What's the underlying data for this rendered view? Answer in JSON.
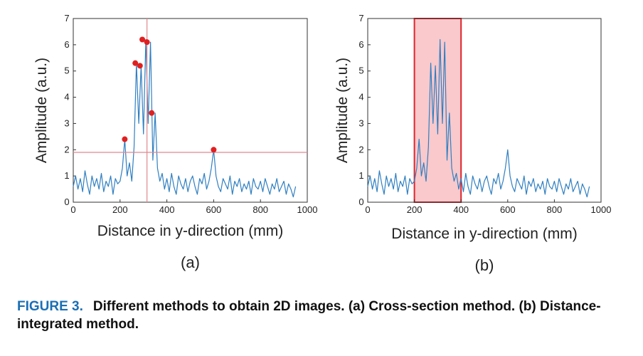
{
  "chart_data": [
    {
      "type": "line",
      "panel": "(a)",
      "xlabel": "Distance in y-direction (mm)",
      "ylabel": "Amplitude (a.u.)",
      "xlim": [
        0,
        1000
      ],
      "ylim": [
        0,
        7
      ],
      "xticks": [
        "0",
        "200",
        "400",
        "600",
        "800",
        "1000"
      ],
      "yticks": [
        "0",
        "1",
        "2",
        "3",
        "4",
        "5",
        "6",
        "7"
      ],
      "series": [
        {
          "name": "amplitude",
          "x": [
            0,
            10,
            20,
            30,
            40,
            50,
            60,
            70,
            80,
            90,
            100,
            110,
            120,
            130,
            140,
            150,
            160,
            170,
            180,
            190,
            200,
            210,
            220,
            230,
            240,
            250,
            260,
            270,
            280,
            290,
            300,
            310,
            320,
            330,
            340,
            350,
            360,
            370,
            380,
            390,
            400,
            410,
            420,
            430,
            440,
            450,
            460,
            470,
            480,
            490,
            500,
            510,
            520,
            530,
            540,
            550,
            560,
            570,
            580,
            590,
            600,
            610,
            620,
            630,
            640,
            650,
            660,
            670,
            680,
            690,
            700,
            710,
            720,
            730,
            740,
            750,
            760,
            770,
            780,
            790,
            800,
            810,
            820,
            830,
            840,
            850,
            860,
            870,
            880,
            890,
            900,
            910,
            920,
            930,
            940,
            950
          ],
          "y": [
            0.6,
            1.0,
            0.5,
            0.9,
            0.4,
            1.2,
            0.7,
            0.3,
            1.0,
            0.6,
            0.9,
            0.5,
            1.1,
            0.4,
            0.8,
            0.6,
            1.0,
            0.3,
            0.9,
            0.7,
            0.8,
            1.3,
            2.4,
            1.0,
            1.5,
            0.8,
            2.1,
            5.3,
            3.0,
            5.2,
            2.6,
            6.2,
            3.0,
            6.1,
            1.6,
            3.4,
            1.3,
            0.8,
            1.1,
            0.5,
            0.9,
            0.4,
            1.1,
            0.6,
            0.3,
            1.0,
            0.7,
            0.5,
            0.9,
            0.4,
            0.8,
            1.0,
            0.6,
            0.3,
            0.9,
            0.7,
            1.1,
            0.5,
            0.8,
            1.3,
            2.0,
            1.0,
            0.6,
            0.4,
            0.9,
            0.7,
            0.5,
            1.0,
            0.3,
            0.8,
            0.6,
            0.9,
            0.4,
            0.7,
            0.5,
            0.8,
            0.3,
            0.9,
            0.6,
            0.5,
            0.8,
            0.4,
            0.9,
            0.6,
            0.3,
            0.7,
            0.5,
            0.9,
            0.4,
            0.6,
            0.8,
            0.3,
            0.7,
            0.5,
            0.2,
            0.6
          ]
        }
      ],
      "peaks": [
        {
          "x": 220,
          "y": 2.4
        },
        {
          "x": 265,
          "y": 5.3
        },
        {
          "x": 285,
          "y": 5.2
        },
        {
          "x": 295,
          "y": 6.2
        },
        {
          "x": 315,
          "y": 6.1
        },
        {
          "x": 335,
          "y": 3.4
        },
        {
          "x": 600,
          "y": 2.0
        }
      ],
      "hline_y": 1.9,
      "vline_x": 315
    },
    {
      "type": "line",
      "panel": "(b)",
      "xlabel": "Distance in y-direction (mm)",
      "ylabel": "Amplitude (a.u.)",
      "xlim": [
        0,
        1000
      ],
      "ylim": [
        0,
        7
      ],
      "xticks": [
        "0",
        "200",
        "400",
        "600",
        "800",
        "1000"
      ],
      "yticks": [
        "0",
        "1",
        "2",
        "3",
        "4",
        "5",
        "6",
        "7"
      ],
      "series": [
        {
          "name": "amplitude",
          "x": [
            0,
            10,
            20,
            30,
            40,
            50,
            60,
            70,
            80,
            90,
            100,
            110,
            120,
            130,
            140,
            150,
            160,
            170,
            180,
            190,
            200,
            210,
            220,
            230,
            240,
            250,
            260,
            270,
            280,
            290,
            300,
            310,
            320,
            330,
            340,
            350,
            360,
            370,
            380,
            390,
            400,
            410,
            420,
            430,
            440,
            450,
            460,
            470,
            480,
            490,
            500,
            510,
            520,
            530,
            540,
            550,
            560,
            570,
            580,
            590,
            600,
            610,
            620,
            630,
            640,
            650,
            660,
            670,
            680,
            690,
            700,
            710,
            720,
            730,
            740,
            750,
            760,
            770,
            780,
            790,
            800,
            810,
            820,
            830,
            840,
            850,
            860,
            870,
            880,
            890,
            900,
            910,
            920,
            930,
            940,
            950
          ],
          "y": [
            0.6,
            1.0,
            0.5,
            0.9,
            0.4,
            1.2,
            0.7,
            0.3,
            1.0,
            0.6,
            0.9,
            0.5,
            1.1,
            0.4,
            0.8,
            0.6,
            1.0,
            0.3,
            0.9,
            0.7,
            0.8,
            1.3,
            2.4,
            1.0,
            1.5,
            0.8,
            2.1,
            5.3,
            3.0,
            5.2,
            2.6,
            6.2,
            3.0,
            6.1,
            1.6,
            3.4,
            1.3,
            0.8,
            1.1,
            0.5,
            0.9,
            0.4,
            1.1,
            0.6,
            0.3,
            1.0,
            0.7,
            0.5,
            0.9,
            0.4,
            0.8,
            1.0,
            0.6,
            0.3,
            0.9,
            0.7,
            1.1,
            0.5,
            0.8,
            1.3,
            2.0,
            1.0,
            0.6,
            0.4,
            0.9,
            0.7,
            0.5,
            1.0,
            0.3,
            0.8,
            0.6,
            0.9,
            0.4,
            0.7,
            0.5,
            0.8,
            0.3,
            0.9,
            0.6,
            0.5,
            0.8,
            0.4,
            0.9,
            0.6,
            0.3,
            0.7,
            0.5,
            0.9,
            0.4,
            0.6,
            0.8,
            0.3,
            0.7,
            0.5,
            0.2,
            0.6
          ]
        }
      ],
      "integration_range": [
        200,
        400
      ]
    }
  ],
  "colors": {
    "line": "#2f7fc1",
    "marker": "#e02020",
    "guide": "#e2888f",
    "band_fill": "#f7b7bb",
    "band_stroke": "#e0242c",
    "caption_label": "#1a6fb5"
  },
  "caption": {
    "label": "FIGURE 3.",
    "text": "Different methods to obtain 2D images. (a) Cross-section method. (b) Distance-integrated method."
  }
}
